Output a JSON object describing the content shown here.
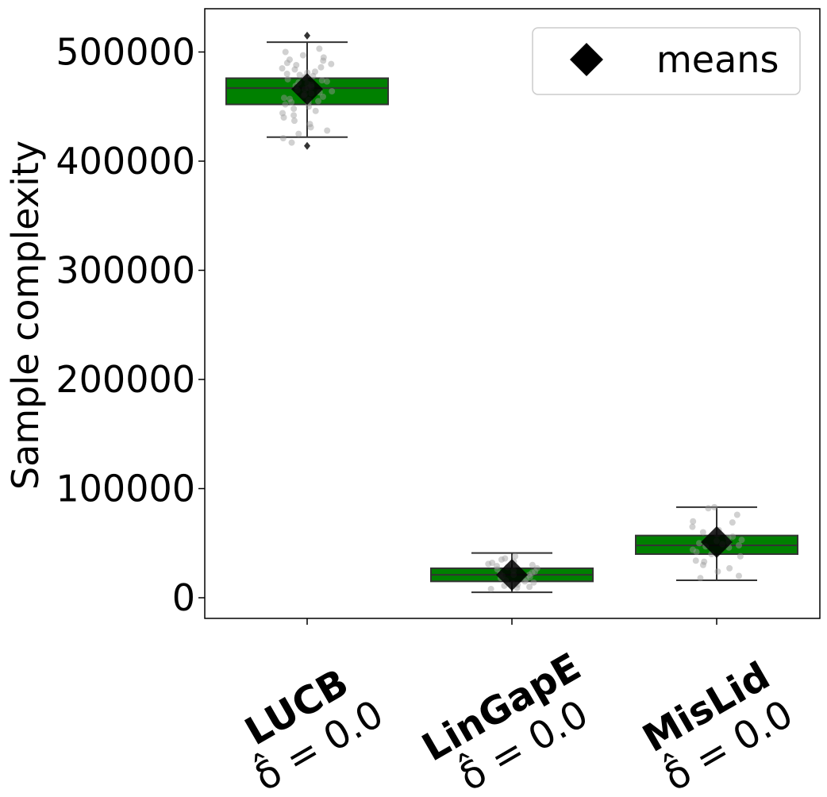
{
  "chart_data": {
    "type": "box",
    "ylabel": "Sample complexity",
    "xlabel": "",
    "ylim": [
      -20000,
      540000
    ],
    "yticks": [
      0,
      100000,
      200000,
      300000,
      400000,
      500000
    ],
    "ytick_labels": [
      "0",
      "100000",
      "200000",
      "300000",
      "400000",
      "500000"
    ],
    "grid": false,
    "legend": {
      "position": "top-right",
      "entries": [
        {
          "label": "means",
          "marker": "diamond",
          "color": "#000000"
        }
      ]
    },
    "colors": {
      "box_fill": "#008000",
      "box_edge": "#333333",
      "points": "#999999",
      "mean_marker": "#000000"
    },
    "categories": [
      {
        "name": "LUCB",
        "subtitle": "δ̂ = 0.0",
        "whisker_low": 422000,
        "q1": 452000,
        "median": 467000,
        "q3": 476000,
        "whisker_high": 509000,
        "mean": 466000,
        "outliers": [
          515000,
          414000
        ],
        "points": [
          503000,
          500000,
          497000,
          495000,
          493000,
          492000,
          490000,
          489000,
          488000,
          486000,
          485000,
          484000,
          482000,
          481000,
          480000,
          479000,
          478000,
          477000,
          476000,
          475000,
          474000,
          473000,
          472000,
          471000,
          470000,
          469000,
          468000,
          467000,
          466000,
          465000,
          464000,
          463000,
          462000,
          461000,
          460000,
          459000,
          458000,
          457000,
          456000,
          455000,
          454000,
          453000,
          452000,
          450000,
          448000,
          446000,
          444000,
          442000,
          440000,
          437000,
          434000,
          431000,
          428000,
          425000,
          421000,
          417000
        ]
      },
      {
        "name": "LinGapE",
        "subtitle": "δ̂ = 0.0",
        "whisker_low": 5000,
        "q1": 15000,
        "median": 21000,
        "q3": 27000,
        "whisker_high": 41000,
        "mean": 21000,
        "outliers": [],
        "points": [
          38000,
          36000,
          35000,
          33000,
          32000,
          31000,
          30000,
          29000,
          28000,
          27000,
          26000,
          25000,
          24000,
          23000,
          22000,
          21000,
          21000,
          20000,
          19000,
          18000,
          17000,
          16000,
          15000,
          14000,
          13000,
          12000,
          11000,
          10000,
          9000,
          8000
        ]
      },
      {
        "name": "MisLid",
        "subtitle": "δ̂ = 0.0",
        "whisker_low": 16000,
        "q1": 40000,
        "median": 48000,
        "q3": 57000,
        "whisker_high": 83000,
        "mean": 51000,
        "outliers": [],
        "points": [
          83000,
          82000,
          76000,
          70000,
          69000,
          65000,
          62000,
          60000,
          58000,
          56000,
          55000,
          53000,
          52000,
          51000,
          50000,
          49000,
          48000,
          47000,
          46000,
          44000,
          42000,
          40000,
          38000,
          34000,
          33000,
          30000,
          27000,
          24000,
          20000,
          18000
        ]
      }
    ]
  }
}
